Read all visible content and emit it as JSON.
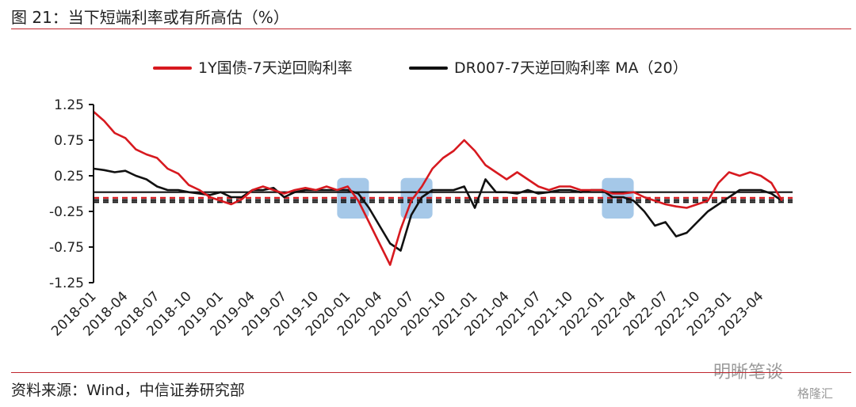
{
  "figure": {
    "title": "图 21：当下短端利率或有所高估（%）",
    "source": "资料来源：Wind，中信证券研究部",
    "watermark": "明晰笔谈",
    "watermark_sub": "格隆汇"
  },
  "colors": {
    "rule": "#c0262d",
    "series_red": "#d7191f",
    "series_black": "#111111",
    "highlight": "#5b9bd5"
  },
  "chart_data": {
    "type": "line",
    "title": "",
    "xlabel": "",
    "ylabel": "",
    "ylim": [
      -1.25,
      1.25
    ],
    "yticks": [
      1.25,
      0.75,
      0.25,
      -0.25,
      -0.75,
      -1.25
    ],
    "ytick_labels": [
      "1.25",
      "0.75",
      "0.25",
      "-0.25",
      "-0.75",
      "-1.25"
    ],
    "xrange": [
      2018.0,
      2023.5
    ],
    "xticks": [
      "2018-01",
      "2018-04",
      "2018-07",
      "2018-10",
      "2019-01",
      "2019-04",
      "2019-07",
      "2019-10",
      "2020-01",
      "2020-04",
      "2020-07",
      "2020-10",
      "2021-01",
      "2021-04",
      "2021-07",
      "2021-10",
      "2022-01",
      "2022-04",
      "2022-07",
      "2022-10",
      "2023-01",
      "2023-04"
    ],
    "grid": false,
    "legend": "top",
    "series": [
      {
        "name": "1Y国债-7天逆回购利率",
        "color": "#d7191f",
        "points": [
          [
            "2018-01",
            1.15
          ],
          [
            "2018-02",
            1.02
          ],
          [
            "2018-03",
            0.85
          ],
          [
            "2018-04",
            0.78
          ],
          [
            "2018-05",
            0.62
          ],
          [
            "2018-06",
            0.55
          ],
          [
            "2018-07",
            0.5
          ],
          [
            "2018-08",
            0.35
          ],
          [
            "2018-09",
            0.28
          ],
          [
            "2018-10",
            0.12
          ],
          [
            "2018-11",
            0.05
          ],
          [
            "2018-12",
            -0.05
          ],
          [
            "2019-01",
            -0.1
          ],
          [
            "2019-02",
            -0.15
          ],
          [
            "2019-03",
            -0.08
          ],
          [
            "2019-04",
            0.05
          ],
          [
            "2019-05",
            0.1
          ],
          [
            "2019-06",
            0.05
          ],
          [
            "2019-07",
            0.0
          ],
          [
            "2019-08",
            0.05
          ],
          [
            "2019-09",
            0.08
          ],
          [
            "2019-10",
            0.05
          ],
          [
            "2019-11",
            0.1
          ],
          [
            "2019-12",
            0.05
          ],
          [
            "2020-01",
            0.1
          ],
          [
            "2020-02",
            -0.1
          ],
          [
            "2020-03",
            -0.4
          ],
          [
            "2020-04",
            -0.7
          ],
          [
            "2020-05",
            -1.0
          ],
          [
            "2020-06",
            -0.5
          ],
          [
            "2020-07",
            -0.1
          ],
          [
            "2020-08",
            0.1
          ],
          [
            "2020-09",
            0.35
          ],
          [
            "2020-10",
            0.5
          ],
          [
            "2020-11",
            0.6
          ],
          [
            "2020-12",
            0.75
          ],
          [
            "2021-01",
            0.6
          ],
          [
            "2021-02",
            0.4
          ],
          [
            "2021-03",
            0.3
          ],
          [
            "2021-04",
            0.2
          ],
          [
            "2021-05",
            0.3
          ],
          [
            "2021-06",
            0.2
          ],
          [
            "2021-07",
            0.1
          ],
          [
            "2021-08",
            0.05
          ],
          [
            "2021-09",
            0.1
          ],
          [
            "2021-10",
            0.1
          ],
          [
            "2021-11",
            0.05
          ],
          [
            "2021-12",
            0.05
          ],
          [
            "2022-01",
            0.05
          ],
          [
            "2022-02",
            0.0
          ],
          [
            "2022-03",
            0.0
          ],
          [
            "2022-04",
            0.02
          ],
          [
            "2022-05",
            -0.05
          ],
          [
            "2022-06",
            -0.1
          ],
          [
            "2022-07",
            -0.15
          ],
          [
            "2022-08",
            -0.18
          ],
          [
            "2022-09",
            -0.2
          ],
          [
            "2022-10",
            -0.15
          ],
          [
            "2022-11",
            -0.1
          ],
          [
            "2022-12",
            0.15
          ],
          [
            "2023-01",
            0.3
          ],
          [
            "2023-02",
            0.25
          ],
          [
            "2023-03",
            0.3
          ],
          [
            "2023-04",
            0.25
          ],
          [
            "2023-05",
            0.15
          ],
          [
            "2023-06",
            -0.1
          ]
        ]
      },
      {
        "name": "DR007-7天逆回购利率 MA（20）",
        "color": "#111111",
        "points": [
          [
            "2018-01",
            0.35
          ],
          [
            "2018-02",
            0.33
          ],
          [
            "2018-03",
            0.3
          ],
          [
            "2018-04",
            0.32
          ],
          [
            "2018-05",
            0.25
          ],
          [
            "2018-06",
            0.2
          ],
          [
            "2018-07",
            0.1
          ],
          [
            "2018-08",
            0.05
          ],
          [
            "2018-09",
            0.05
          ],
          [
            "2018-10",
            0.02
          ],
          [
            "2018-11",
            0.0
          ],
          [
            "2018-12",
            -0.02
          ],
          [
            "2019-01",
            0.02
          ],
          [
            "2019-02",
            -0.05
          ],
          [
            "2019-03",
            -0.05
          ],
          [
            "2019-04",
            0.05
          ],
          [
            "2019-05",
            0.05
          ],
          [
            "2019-06",
            0.08
          ],
          [
            "2019-07",
            -0.05
          ],
          [
            "2019-08",
            0.02
          ],
          [
            "2019-09",
            0.05
          ],
          [
            "2019-10",
            0.05
          ],
          [
            "2019-11",
            0.05
          ],
          [
            "2019-12",
            0.05
          ],
          [
            "2020-01",
            0.05
          ],
          [
            "2020-02",
            0.0
          ],
          [
            "2020-03",
            -0.2
          ],
          [
            "2020-04",
            -0.45
          ],
          [
            "2020-05",
            -0.7
          ],
          [
            "2020-06",
            -0.8
          ],
          [
            "2020-07",
            -0.3
          ],
          [
            "2020-08",
            -0.05
          ],
          [
            "2020-09",
            0.05
          ],
          [
            "2020-10",
            0.05
          ],
          [
            "2020-11",
            0.05
          ],
          [
            "2020-12",
            0.1
          ],
          [
            "2021-01",
            -0.2
          ],
          [
            "2021-02",
            0.2
          ],
          [
            "2021-03",
            0.02
          ],
          [
            "2021-04",
            0.02
          ],
          [
            "2021-05",
            0.0
          ],
          [
            "2021-06",
            0.05
          ],
          [
            "2021-07",
            0.0
          ],
          [
            "2021-08",
            0.02
          ],
          [
            "2021-09",
            0.05
          ],
          [
            "2021-10",
            0.05
          ],
          [
            "2021-11",
            0.02
          ],
          [
            "2021-12",
            0.05
          ],
          [
            "2022-01",
            0.05
          ],
          [
            "2022-02",
            -0.05
          ],
          [
            "2022-03",
            -0.05
          ],
          [
            "2022-04",
            -0.1
          ],
          [
            "2022-05",
            -0.25
          ],
          [
            "2022-06",
            -0.45
          ],
          [
            "2022-07",
            -0.4
          ],
          [
            "2022-08",
            -0.6
          ],
          [
            "2022-09",
            -0.55
          ],
          [
            "2022-10",
            -0.4
          ],
          [
            "2022-11",
            -0.25
          ],
          [
            "2022-12",
            -0.15
          ],
          [
            "2023-01",
            -0.05
          ],
          [
            "2023-02",
            0.05
          ],
          [
            "2023-03",
            0.05
          ],
          [
            "2023-04",
            0.05
          ],
          [
            "2023-05",
            0.0
          ],
          [
            "2023-06",
            -0.1
          ]
        ]
      }
    ],
    "reference_lines": [
      {
        "value": 0.02,
        "color": "#111111",
        "style": "solid"
      },
      {
        "value": -0.06,
        "color": "#d7191f",
        "style": "dashed"
      },
      {
        "value": -0.09,
        "color": "#111111",
        "style": "dashed"
      },
      {
        "value": -0.12,
        "color": "#111111",
        "style": "dashed"
      }
    ],
    "highlight_ranges": [
      {
        "from": "2019-12",
        "to": "2020-03"
      },
      {
        "from": "2020-06",
        "to": "2020-09"
      },
      {
        "from": "2022-01",
        "to": "2022-04"
      }
    ]
  }
}
